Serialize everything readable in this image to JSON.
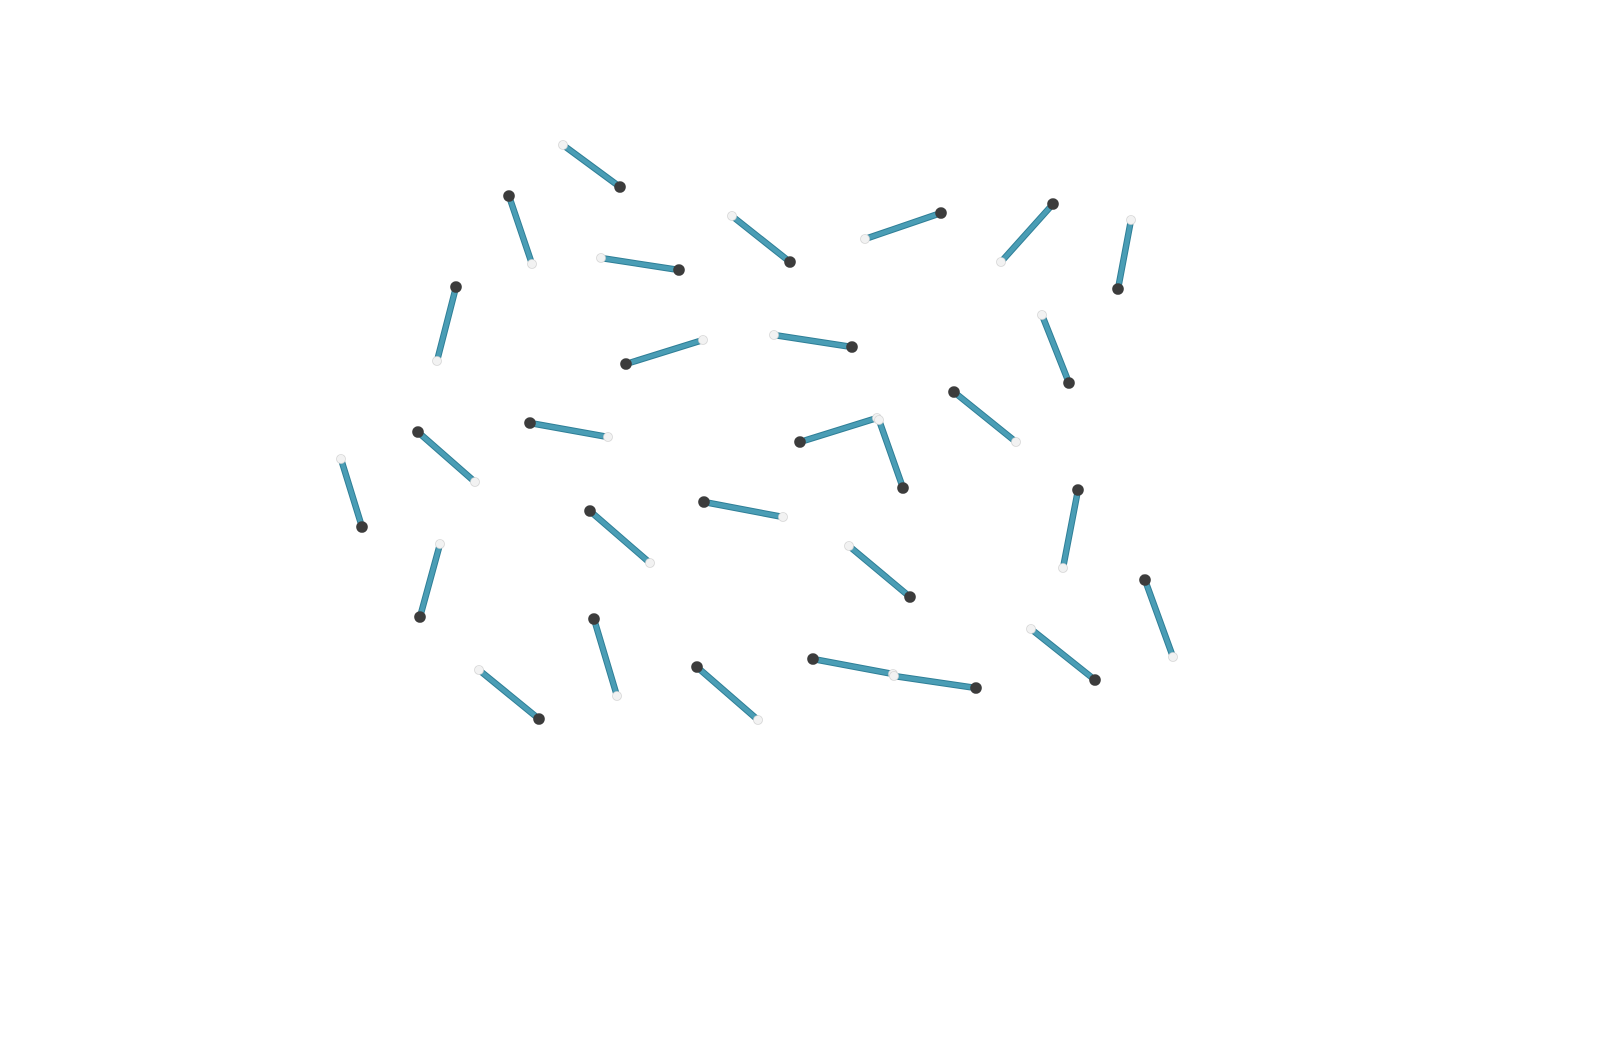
{
  "canvas": {
    "background": "#ffffff"
  },
  "colors": {
    "rod": "#4a9db5",
    "rod_edge": "#2f7f97",
    "dark_endpoint": "#3c3c3c",
    "light_endpoint": "#f2f2f2",
    "light_endpoint_edge": "#d6d6d6"
  },
  "rod_count": 31
}
